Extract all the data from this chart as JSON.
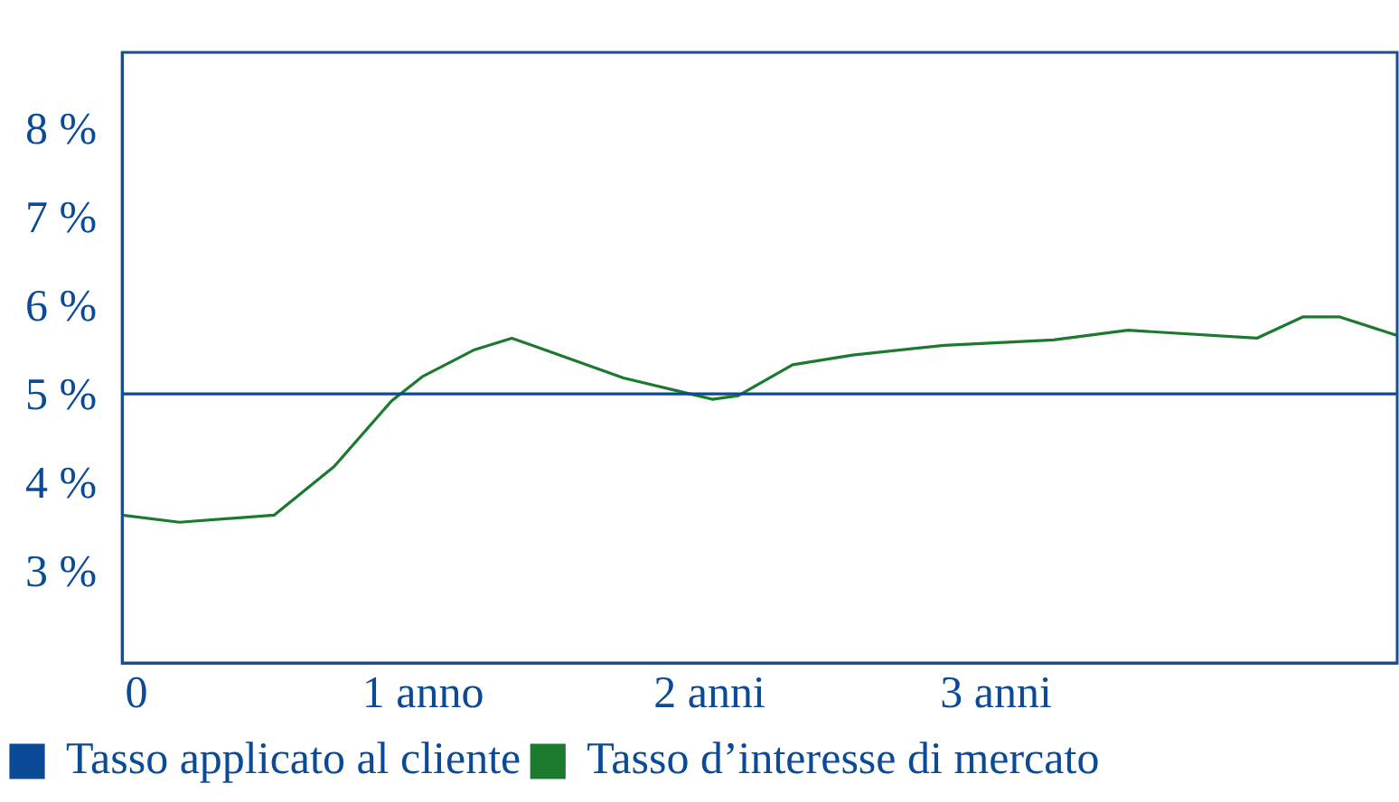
{
  "chart_data": {
    "type": "line",
    "xlim": [
      -0.05,
      4.4
    ],
    "ylim": [
      2,
      8.9
    ],
    "xticks": [
      {
        "value": 0,
        "label": "0"
      },
      {
        "value": 1,
        "label": "1 anno"
      },
      {
        "value": 2,
        "label": "2 anni"
      },
      {
        "value": 3,
        "label": "3 anni"
      }
    ],
    "yticks": [
      {
        "value": 3,
        "label": "3 %"
      },
      {
        "value": 4,
        "label": "4 %"
      },
      {
        "value": 5,
        "label": "5 %"
      },
      {
        "value": 6,
        "label": "6 %"
      },
      {
        "value": 7,
        "label": "7 %"
      },
      {
        "value": 8,
        "label": "8 %"
      }
    ],
    "series": [
      {
        "name": "Tasso applicato al cliente",
        "color": "#0b4a96",
        "x": [
          -0.05,
          4.4
        ],
        "values": [
          5.04,
          5.04
        ]
      },
      {
        "name": "Tasso d’interesse di mercato",
        "color": "#1b7a2e",
        "x": [
          -0.05,
          0.15,
          0.48,
          0.69,
          0.89,
          1.0,
          1.18,
          1.31,
          1.38,
          1.7,
          2.01,
          2.1,
          2.29,
          2.5,
          2.82,
          3.2,
          3.46,
          3.91,
          4.07,
          4.2,
          4.4
        ],
        "values": [
          3.67,
          3.59,
          3.67,
          4.22,
          4.96,
          5.24,
          5.54,
          5.67,
          5.59,
          5.22,
          4.98,
          5.02,
          5.37,
          5.48,
          5.59,
          5.65,
          5.76,
          5.67,
          5.91,
          5.91,
          5.7
        ]
      }
    ],
    "grid": false,
    "legend": "bottom left",
    "marker": "none",
    "line_style": "solid"
  }
}
